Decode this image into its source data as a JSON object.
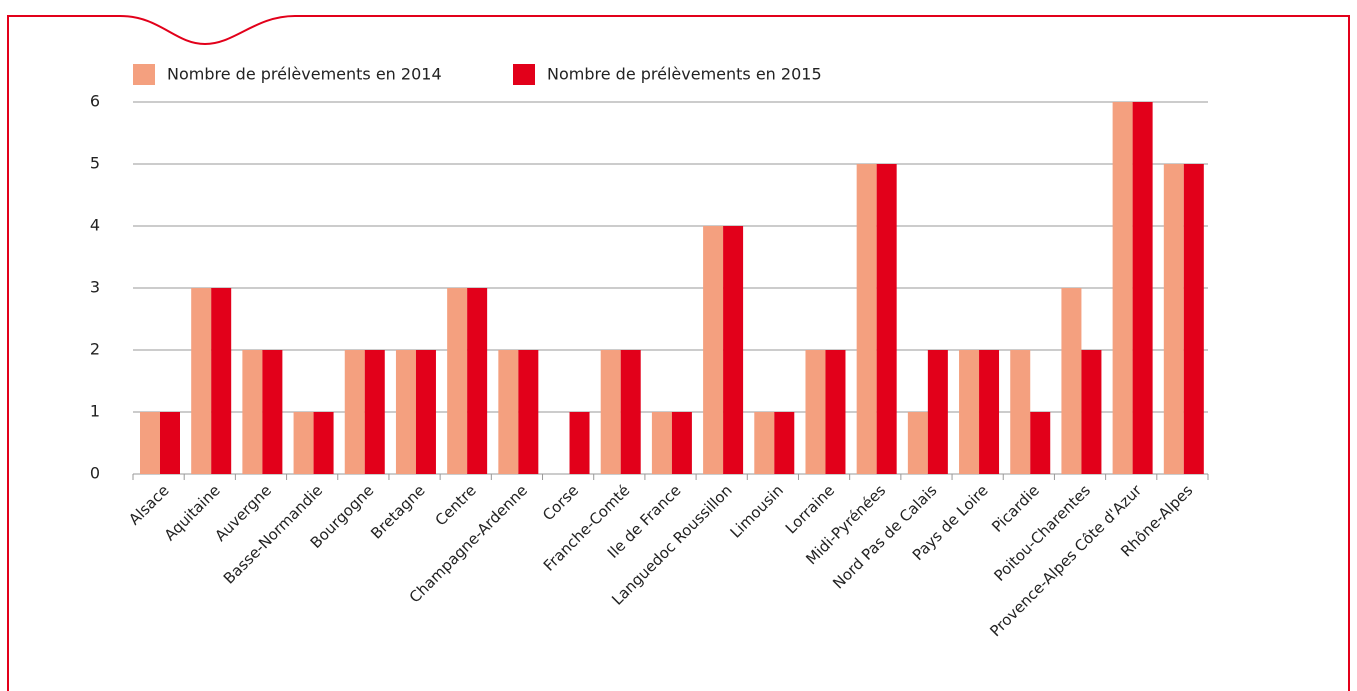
{
  "chart_data": {
    "type": "bar",
    "categories": [
      "Alsace",
      "Aquitaine",
      "Auvergne",
      "Basse-Normandie",
      "Bourgogne",
      "Bretagne",
      "Centre",
      "Champagne-Ardenne",
      "Corse",
      "Franche-Comté",
      "Ile de France",
      "Languedoc Roussillon",
      "Limousin",
      "Lorraine",
      "Midi-Pyrénées",
      "Nord Pas de Calais",
      "Pays de Loire",
      "Picardie",
      "Poitou-Charentes",
      "Provence-Alpes Côte d'Azur",
      "Rhône-Alpes"
    ],
    "series": [
      {
        "name": "Nombre de prélèvements en 2014",
        "color": "#f4a07f",
        "values": [
          1,
          3,
          2,
          1,
          2,
          2,
          3,
          2,
          0,
          2,
          1,
          4,
          1,
          2,
          5,
          1,
          2,
          2,
          3,
          6,
          5
        ]
      },
      {
        "name": "Nombre de prélèvements en 2015",
        "color": "#e2001a",
        "values": [
          1,
          3,
          2,
          1,
          2,
          2,
          3,
          2,
          1,
          2,
          1,
          4,
          1,
          2,
          5,
          2,
          2,
          1,
          2,
          6,
          5
        ]
      }
    ],
    "ylim": [
      0,
      6
    ],
    "yticks": [
      0,
      1,
      2,
      3,
      4,
      5,
      6
    ],
    "grid": true,
    "legend": "top"
  }
}
